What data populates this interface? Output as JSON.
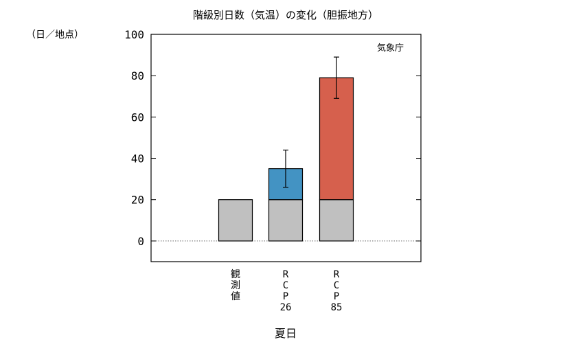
{
  "chart_data": {
    "type": "bar",
    "title": "階級別日数（気温）の変化（胆振地方）",
    "ylabel": "（日／地点）",
    "xlabel": "夏日",
    "source": "気象庁",
    "ylim": [
      -10,
      100
    ],
    "yticks": [
      "0",
      "20",
      "40",
      "60",
      "80",
      "100"
    ],
    "categories": [
      {
        "label": [
          "観",
          "測",
          "値"
        ]
      },
      {
        "label": [
          "R",
          "C",
          "P",
          "26"
        ]
      },
      {
        "label": [
          "R",
          "C",
          "P",
          "85"
        ]
      }
    ],
    "series": [
      {
        "values": [
          20,
          20,
          20
        ],
        "color": "#c0c0c0"
      },
      {
        "values": [
          0,
          15,
          59
        ],
        "colors": [
          "#c0c0c0",
          "#4393c3",
          "#d6604d"
        ]
      }
    ],
    "totals": [
      20,
      35,
      79
    ],
    "error_bars": [
      null,
      [
        26,
        44
      ],
      [
        69,
        89
      ]
    ],
    "grid": false,
    "zero_line": "dotted"
  }
}
